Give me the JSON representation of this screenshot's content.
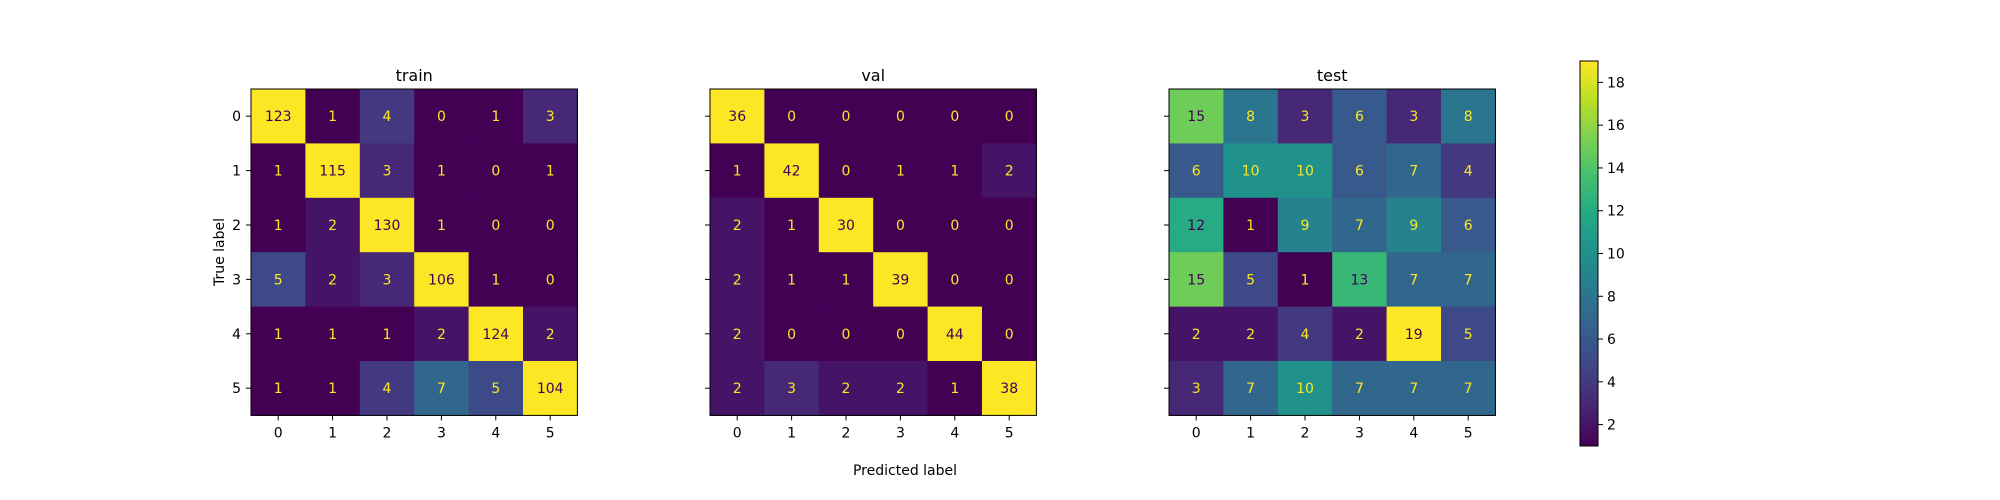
{
  "chart_data": {
    "type": "heatmap",
    "xlabel": "Predicted label",
    "ylabel": "True label",
    "class_labels": [
      "0",
      "1",
      "2",
      "3",
      "4",
      "5"
    ],
    "colormap": "viridis",
    "colorbar": {
      "range": [
        1,
        19
      ],
      "ticks": [
        "2",
        "4",
        "6",
        "8",
        "10",
        "12",
        "14",
        "16",
        "18"
      ]
    },
    "panels": [
      {
        "title": "train",
        "matrix": [
          [
            123,
            1,
            4,
            0,
            1,
            3
          ],
          [
            1,
            115,
            3,
            1,
            0,
            1
          ],
          [
            1,
            2,
            130,
            1,
            0,
            0
          ],
          [
            5,
            2,
            3,
            106,
            1,
            0
          ],
          [
            1,
            1,
            1,
            2,
            124,
            2
          ],
          [
            1,
            1,
            4,
            7,
            5,
            104
          ]
        ]
      },
      {
        "title": "val",
        "matrix": [
          [
            36,
            0,
            0,
            0,
            0,
            0
          ],
          [
            1,
            42,
            0,
            1,
            1,
            2
          ],
          [
            2,
            1,
            30,
            0,
            0,
            0
          ],
          [
            2,
            1,
            1,
            39,
            0,
            0
          ],
          [
            2,
            0,
            0,
            0,
            44,
            0
          ],
          [
            2,
            3,
            2,
            2,
            1,
            38
          ]
        ]
      },
      {
        "title": "test",
        "matrix": [
          [
            15,
            8,
            3,
            6,
            3,
            8
          ],
          [
            6,
            10,
            10,
            6,
            7,
            4
          ],
          [
            12,
            1,
            9,
            7,
            9,
            6
          ],
          [
            15,
            5,
            1,
            13,
            7,
            7
          ],
          [
            2,
            2,
            4,
            2,
            19,
            5
          ],
          [
            3,
            7,
            10,
            7,
            7,
            7
          ]
        ]
      }
    ]
  }
}
